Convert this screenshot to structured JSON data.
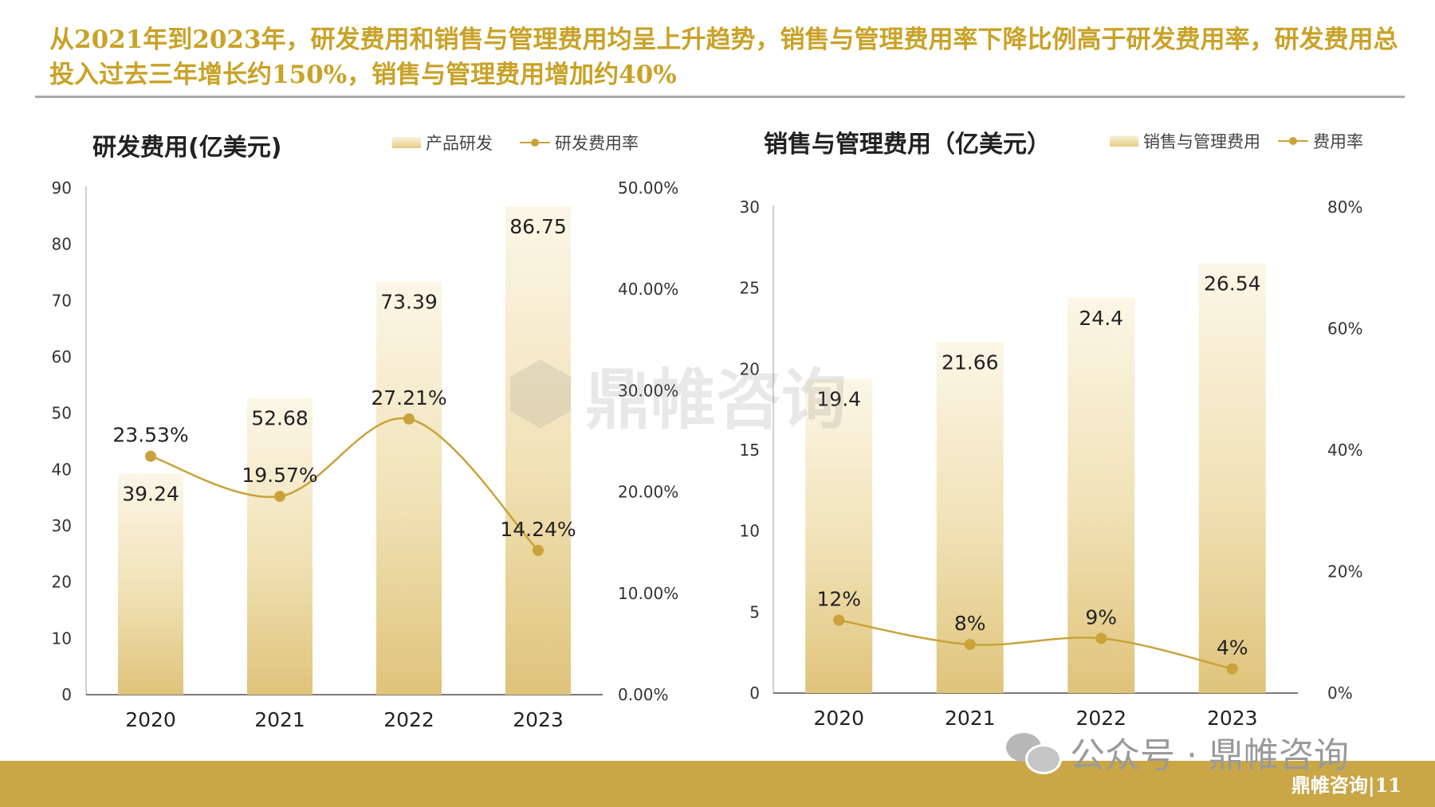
{
  "headline": "从2021年到2023年，研发费用和销售与管理费用均呈上升趋势，销售与管理费用率下降比例高于研发费用率，研发费用总投入过去三年增长约150%，销售与管理费用增加约40%",
  "watermark": "鼎帷咨询",
  "account_label": "公众号 · 鼎帷咨询",
  "footer_page": "鼎帷咨询|11",
  "colors": {
    "accent": "#c9a646",
    "headline": "#c9a227",
    "line": "#c9a23a"
  },
  "chart_data": [
    {
      "type": "bar",
      "title": "研发费用(亿美元)",
      "categories": [
        "2020",
        "2021",
        "2022",
        "2023"
      ],
      "series": [
        {
          "name": "产品研发",
          "type": "bar",
          "axis": "left",
          "values": [
            39.24,
            52.68,
            73.39,
            86.75
          ],
          "labels": [
            "39.24",
            "52.68",
            "73.39",
            "86.75"
          ]
        },
        {
          "name": "研发费用率",
          "type": "line",
          "axis": "right",
          "values": [
            23.53,
            19.57,
            27.21,
            14.24
          ],
          "labels": [
            "23.53%",
            "19.57%",
            "27.21%",
            "14.24%"
          ]
        }
      ],
      "ylim": [
        0,
        90
      ],
      "yticks": [
        "0",
        "10",
        "20",
        "30",
        "40",
        "50",
        "60",
        "70",
        "80",
        "90"
      ],
      "y2lim": [
        0,
        50
      ],
      "y2ticks": [
        "0.00%",
        "10.00%",
        "20.00%",
        "30.00%",
        "40.00%",
        "50.00%"
      ],
      "legend": "top-right",
      "grid": false
    },
    {
      "type": "bar",
      "title": "销售与管理费用（亿美元）",
      "categories": [
        "2020",
        "2021",
        "2022",
        "2023"
      ],
      "series": [
        {
          "name": "销售与管理费用",
          "type": "bar",
          "axis": "left",
          "values": [
            19.4,
            21.66,
            24.4,
            26.54
          ],
          "labels": [
            "19.4",
            "21.66",
            "24.4",
            "26.54"
          ]
        },
        {
          "name": "费用率",
          "type": "line",
          "axis": "right",
          "values": [
            12,
            8,
            9,
            4
          ],
          "labels": [
            "12%",
            "8%",
            "9%",
            "4%"
          ]
        }
      ],
      "ylim": [
        0,
        30
      ],
      "yticks": [
        "0",
        "5",
        "10",
        "15",
        "20",
        "25",
        "30"
      ],
      "y2lim": [
        0,
        80
      ],
      "y2ticks": [
        "0%",
        "20%",
        "40%",
        "60%",
        "80%"
      ],
      "legend": "top-right",
      "grid": false
    }
  ]
}
